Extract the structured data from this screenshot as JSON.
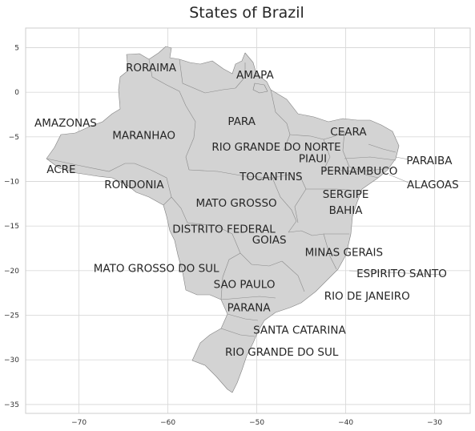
{
  "title": "States of Brazil",
  "axes": {
    "x_ticks": [
      -70,
      -60,
      -50,
      -40,
      -30
    ],
    "y_ticks": [
      5,
      0,
      -5,
      -10,
      -15,
      -20,
      -25,
      -30,
      -35
    ],
    "xlim": [
      -76,
      -26
    ],
    "ylim": [
      -36,
      7.2
    ],
    "grid": true
  },
  "colors": {
    "land": "#d3d3d3",
    "border": "#808080",
    "grid": "#d9d9d9",
    "text": "#262626"
  },
  "states": [
    {
      "name": "RORAIMA",
      "lon": -61.9,
      "lat": 2.8
    },
    {
      "name": "AMAPA",
      "lon": -50.2,
      "lat": 2.0
    },
    {
      "name": "AMAZONAS",
      "lon": -71.5,
      "lat": -3.4
    },
    {
      "name": "PARA",
      "lon": -51.7,
      "lat": -3.2
    },
    {
      "name": "CEARA",
      "lon": -39.7,
      "lat": -4.4
    },
    {
      "name": "MARANHAO",
      "lon": -62.7,
      "lat": -4.8
    },
    {
      "name": "RIO GRANDE DO NORTE",
      "lon": -47.8,
      "lat": -6.1
    },
    {
      "name": "PARAIBA",
      "lon": -30.6,
      "lat": -7.6
    },
    {
      "name": "PIAUI",
      "lon": -43.7,
      "lat": -7.4
    },
    {
      "name": "ACRE",
      "lon": -72.0,
      "lat": -8.6
    },
    {
      "name": "PERNAMBUCO",
      "lon": -38.5,
      "lat": -8.8
    },
    {
      "name": "TOCANTINS",
      "lon": -48.4,
      "lat": -9.4
    },
    {
      "name": "ALAGOAS",
      "lon": -30.2,
      "lat": -10.3
    },
    {
      "name": "RONDONIA",
      "lon": -63.8,
      "lat": -10.3
    },
    {
      "name": "SERGIPE",
      "lon": -40.0,
      "lat": -11.4
    },
    {
      "name": "MATO GROSSO",
      "lon": -52.3,
      "lat": -12.4
    },
    {
      "name": "BAHIA",
      "lon": -40.0,
      "lat": -13.2
    },
    {
      "name": "DISTRITO FEDERAL",
      "lon": -53.7,
      "lat": -15.3
    },
    {
      "name": "GOIAS",
      "lon": -48.6,
      "lat": -16.5
    },
    {
      "name": "MINAS GERAIS",
      "lon": -40.2,
      "lat": -17.9
    },
    {
      "name": "MATO GROSSO DO SUL",
      "lon": -61.3,
      "lat": -19.7
    },
    {
      "name": "ESPIRITO SANTO",
      "lon": -33.7,
      "lat": -20.3
    },
    {
      "name": "SAO PAULO",
      "lon": -51.4,
      "lat": -21.5
    },
    {
      "name": "RIO DE JANEIRO",
      "lon": -37.6,
      "lat": -22.8
    },
    {
      "name": "PARANA",
      "lon": -50.9,
      "lat": -24.1
    },
    {
      "name": "SANTA CATARINA",
      "lon": -45.2,
      "lat": -26.6
    },
    {
      "name": "RIO GRANDE DO SUL",
      "lon": -47.2,
      "lat": -29.1
    }
  ]
}
